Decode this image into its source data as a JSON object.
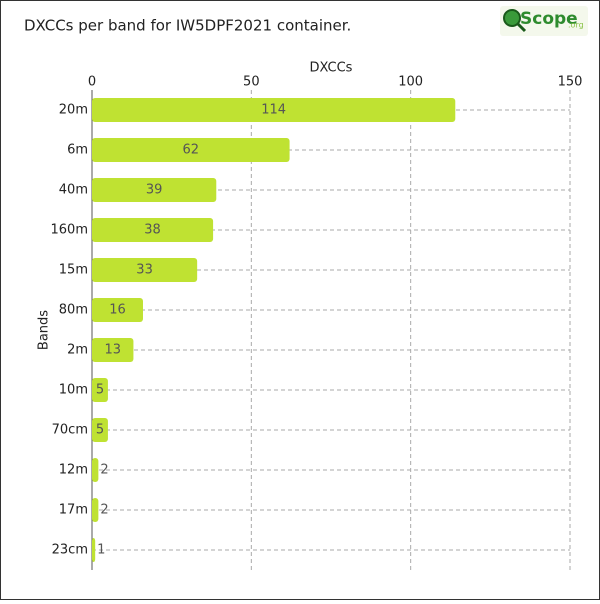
{
  "chart_data": {
    "type": "hbar",
    "title": "DXCCs per band for IW5DPF2021 container.",
    "x_label": "DXCCs",
    "y_label": "Bands",
    "categories": [
      "20m",
      "6m",
      "40m",
      "160m",
      "15m",
      "80m",
      "2m",
      "10m",
      "70cm",
      "12m",
      "17m",
      "23cm"
    ],
    "values": [
      114,
      62,
      39,
      38,
      33,
      16,
      13,
      5,
      5,
      2,
      2,
      1
    ],
    "color": "#bfe232",
    "xlim": [
      0,
      150
    ],
    "xticks": [
      0,
      50,
      100,
      150
    ],
    "grid": true
  },
  "logo": {
    "text": "Scope",
    "suffix": ".org"
  }
}
